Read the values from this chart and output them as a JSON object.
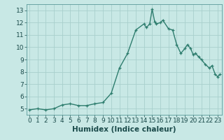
{
  "x": [
    0,
    1,
    2,
    3,
    4,
    5,
    6,
    7,
    8,
    9,
    10,
    11,
    12,
    13,
    14,
    14.3,
    14.7,
    15,
    15.3,
    15.5,
    16,
    16.3,
    17,
    17.5,
    18,
    18.5,
    19,
    19.3,
    19.7,
    20,
    20.3,
    20.7,
    21,
    21.5,
    22,
    22.3,
    22.7,
    23,
    23.3
  ],
  "y": [
    4.9,
    5.0,
    4.9,
    5.0,
    5.3,
    5.4,
    5.25,
    5.25,
    5.4,
    5.5,
    6.25,
    8.3,
    9.5,
    11.4,
    11.9,
    11.6,
    11.9,
    13.1,
    12.1,
    11.9,
    12.0,
    12.2,
    11.5,
    11.4,
    10.2,
    9.5,
    9.9,
    10.2,
    9.9,
    9.4,
    9.5,
    9.2,
    9.0,
    8.6,
    8.3,
    8.5,
    7.8,
    7.6,
    7.8
  ],
  "line_color": "#2e7d6e",
  "marker": "+",
  "bg_color": "#c8e8e5",
  "grid_color": "#a8d0cc",
  "xlabel": "Humidex (Indice chaleur)",
  "ylim": [
    4.5,
    13.5
  ],
  "xlim": [
    -0.3,
    23.5
  ],
  "yticks": [
    5,
    6,
    7,
    8,
    9,
    10,
    11,
    12,
    13
  ],
  "xticks": [
    0,
    1,
    2,
    3,
    4,
    5,
    6,
    7,
    8,
    9,
    10,
    11,
    12,
    13,
    14,
    15,
    16,
    17,
    18,
    19,
    20,
    21,
    22,
    23
  ],
  "xlabel_fontsize": 7.5,
  "tick_fontsize": 6.5,
  "marker_size": 3.5,
  "line_width": 1.0
}
